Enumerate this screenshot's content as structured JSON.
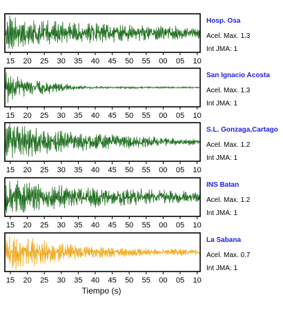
{
  "chart_data": {
    "type": "line",
    "description_axis": "time",
    "xlabel": "Tiempo (s)",
    "x_tick_labels": [
      "15",
      "20",
      "25",
      "30",
      "35",
      "40",
      "45",
      "50",
      "55",
      "00",
      "05",
      "10"
    ],
    "panels": [
      {
        "name": "Hosp. Osa",
        "accel_label": "Acel. Max. 1.3",
        "intensity_label": "Int JMA: 1",
        "color": "#1a6b1a",
        "envelope": [
          0.95,
          0.9,
          0.7,
          0.6,
          0.55,
          0.5,
          0.5,
          0.48,
          0.45,
          0.42,
          0.4,
          0.35,
          0.3
        ],
        "seed": 11
      },
      {
        "name": "San Ignacio Acosta",
        "accel_label": "Acel. Max. 1.3",
        "intensity_label": "Int JMA: 1",
        "color": "#1a6b1a",
        "envelope": [
          0.85,
          0.5,
          0.4,
          0.28,
          0.15,
          0.08,
          0.05,
          0.05,
          0.06,
          0.04,
          0.04,
          0.04,
          0.04
        ],
        "seed": 23
      },
      {
        "name": "S.L. Gonzaga,Cartago",
        "accel_label": "Acel. Max. 1.2",
        "intensity_label": "Int JMA: 1",
        "color": "#1a6b1a",
        "envelope": [
          0.95,
          0.9,
          0.7,
          0.6,
          0.55,
          0.45,
          0.4,
          0.38,
          0.32,
          0.3,
          0.22,
          0.18,
          0.15
        ],
        "seed": 37
      },
      {
        "name": "INS Batan",
        "accel_label": "Acel. Max. 1.2",
        "intensity_label": "Int JMA: 1",
        "color": "#1a6b1a",
        "envelope": [
          0.95,
          0.85,
          0.75,
          0.65,
          0.6,
          0.55,
          0.5,
          0.5,
          0.45,
          0.4,
          0.35,
          0.35,
          0.3
        ],
        "seed": 53
      },
      {
        "name": "La Sabana",
        "accel_label": "Acel. Max. 0.7",
        "intensity_label": "Int JMA: 1",
        "color": "#f0a81a",
        "envelope": [
          0.95,
          0.85,
          0.7,
          0.55,
          0.45,
          0.35,
          0.3,
          0.25,
          0.22,
          0.2,
          0.15,
          0.2,
          0.12
        ],
        "seed": 71
      }
    ]
  }
}
